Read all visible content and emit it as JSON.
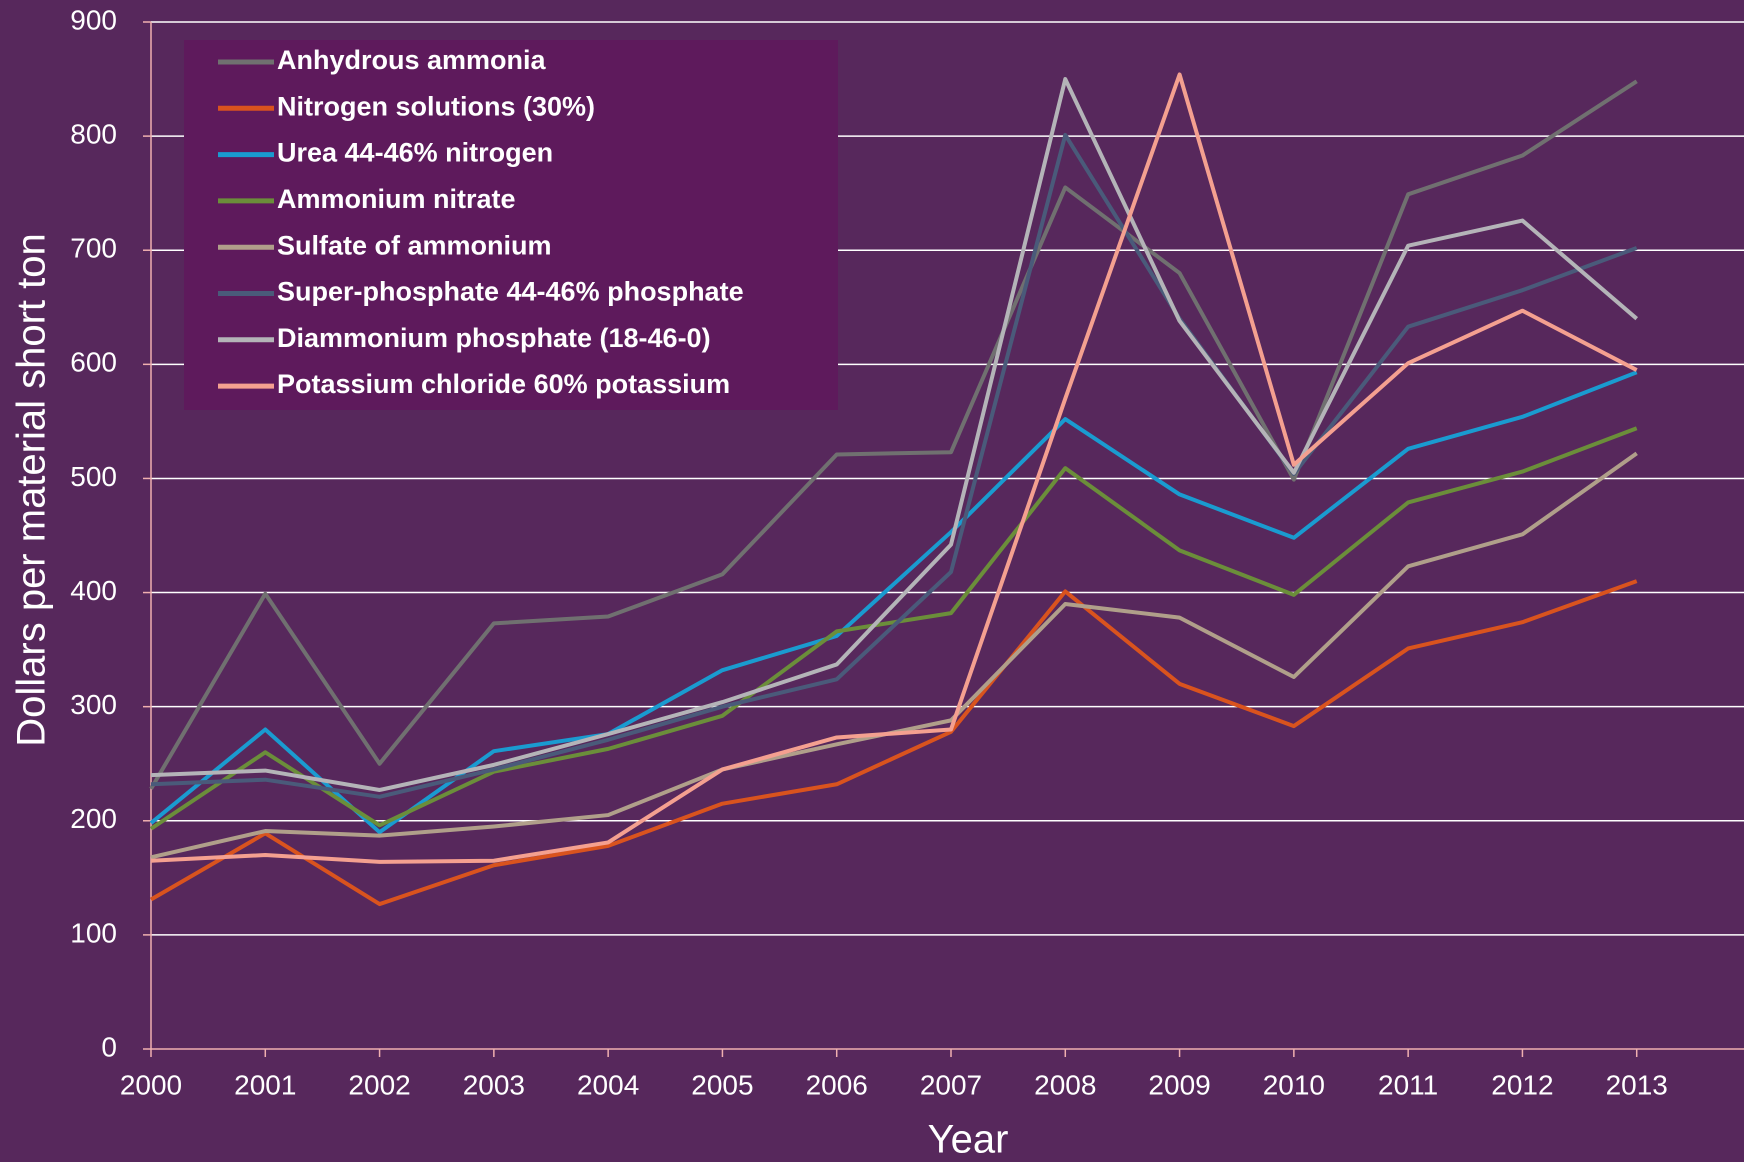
{
  "chart_data": {
    "type": "line",
    "x_label": "Year",
    "y_label": "Dollars per material short ton",
    "x": [
      2000,
      2001,
      2002,
      2003,
      2004,
      2005,
      2006,
      2007,
      2008,
      2009,
      2010,
      2011,
      2012,
      2013
    ],
    "xlim": [
      2000,
      2014
    ],
    "xticks": [
      2000,
      2001,
      2002,
      2003,
      2004,
      2005,
      2006,
      2007,
      2008,
      2009,
      2010,
      2011,
      2012,
      2013
    ],
    "ylim": [
      0,
      900
    ],
    "yticks": [
      0,
      100,
      200,
      300,
      400,
      500,
      600,
      700,
      800,
      900
    ],
    "grid": true,
    "legend": "upper left",
    "series": [
      {
        "name": "Anhydrous ammonia",
        "color": "#707070",
        "values": [
          228,
          399,
          250,
          373,
          379,
          416,
          521,
          523,
          755,
          680,
          499,
          749,
          783,
          848
        ]
      },
      {
        "name": "Nitrogen solutions (30%)",
        "color": "#d9531e",
        "values": [
          131,
          189,
          127,
          161,
          178,
          215,
          232,
          278,
          401,
          320,
          283,
          351,
          374,
          410
        ]
      },
      {
        "name": "Urea 44-46% nitrogen",
        "color": "#1a9bd0",
        "values": [
          198,
          280,
          190,
          261,
          276,
          332,
          362,
          453,
          552,
          486,
          448,
          526,
          554,
          593
        ]
      },
      {
        "name": "Ammonium nitrate",
        "color": "#6b8e3a",
        "values": [
          193,
          260,
          196,
          243,
          263,
          292,
          366,
          382,
          509,
          437,
          398,
          479,
          506,
          544
        ]
      },
      {
        "name": "Sulfate of ammonium",
        "color": "#b09f8a",
        "values": [
          168,
          191,
          187,
          195,
          205,
          245,
          267,
          288,
          390,
          378,
          326,
          423,
          451,
          522
        ]
      },
      {
        "name": "Super-phosphate 44-46% phosphate",
        "color": "#4a5a7a",
        "values": [
          232,
          236,
          221,
          245,
          271,
          300,
          324,
          418,
          801,
          640,
          504,
          633,
          665,
          702
        ]
      },
      {
        "name": "Diammonium phosphate (18-46-0)",
        "color": "#b4b4b8",
        "values": [
          240,
          244,
          227,
          249,
          276,
          304,
          337,
          442,
          850,
          638,
          505,
          704,
          726,
          640
        ]
      },
      {
        "name": "Potassium chloride 60% potassium",
        "color": "#f4a090",
        "values": [
          165,
          170,
          164,
          165,
          181,
          245,
          273,
          280,
          570,
          854,
          512,
          601,
          647,
          595
        ]
      }
    ]
  }
}
